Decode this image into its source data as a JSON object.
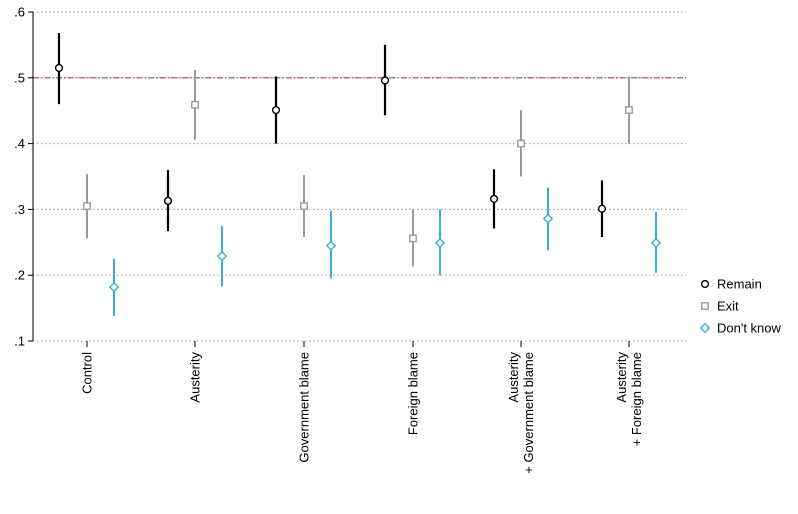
{
  "chart_data": {
    "type": "scatter",
    "title": "",
    "xlabel": "",
    "ylabel": "",
    "ylim": [
      0.1,
      0.6
    ],
    "yticks": [
      0.1,
      0.2,
      0.3,
      0.4,
      0.5,
      0.6
    ],
    "ytick_labels": [
      ".1",
      ".2",
      ".3",
      ".4",
      ".5",
      ".6"
    ],
    "grid": true,
    "reference_line": {
      "y": 0.5,
      "color": "#9b3f92"
    },
    "legend_position": "right",
    "categories": [
      {
        "id": "control",
        "lines": [
          "Control"
        ]
      },
      {
        "id": "austerity",
        "lines": [
          "Austerity"
        ]
      },
      {
        "id": "government-blame",
        "lines": [
          "Government blame"
        ]
      },
      {
        "id": "foreign-blame",
        "lines": [
          "Foreign blame"
        ]
      },
      {
        "id": "austerity-government-blame",
        "lines": [
          "Austerity",
          "+ Government blame"
        ]
      },
      {
        "id": "austerity-foreign-blame",
        "lines": [
          "Austerity",
          "+ Foreign blame"
        ]
      }
    ],
    "series": [
      {
        "name": "Remain",
        "id": "remain",
        "marker": "circle",
        "color": "#000000",
        "points": [
          {
            "y": 0.515,
            "lo": 0.46,
            "hi": 0.568
          },
          {
            "y": 0.313,
            "lo": 0.267,
            "hi": 0.36
          },
          {
            "y": 0.451,
            "lo": 0.4,
            "hi": 0.502
          },
          {
            "y": 0.496,
            "lo": 0.443,
            "hi": 0.55
          },
          {
            "y": 0.316,
            "lo": 0.271,
            "hi": 0.361
          },
          {
            "y": 0.301,
            "lo": 0.258,
            "hi": 0.344
          }
        ]
      },
      {
        "name": "Exit",
        "id": "exit",
        "marker": "square",
        "color": "#9a9a9a",
        "points": [
          {
            "y": 0.305,
            "lo": 0.256,
            "hi": 0.354
          },
          {
            "y": 0.459,
            "lo": 0.406,
            "hi": 0.512
          },
          {
            "y": 0.305,
            "lo": 0.258,
            "hi": 0.352
          },
          {
            "y": 0.256,
            "lo": 0.213,
            "hi": 0.3
          },
          {
            "y": 0.4,
            "lo": 0.35,
            "hi": 0.451
          },
          {
            "y": 0.451,
            "lo": 0.4,
            "hi": 0.502
          }
        ]
      },
      {
        "name": "Don't know",
        "id": "dont-know",
        "marker": "diamond",
        "color": "#3aaedf",
        "points": [
          {
            "y": 0.182,
            "lo": 0.138,
            "hi": 0.225
          },
          {
            "y": 0.229,
            "lo": 0.183,
            "hi": 0.275
          },
          {
            "y": 0.245,
            "lo": 0.195,
            "hi": 0.298
          },
          {
            "y": 0.249,
            "lo": 0.2,
            "hi": 0.3
          },
          {
            "y": 0.286,
            "lo": 0.238,
            "hi": 0.333
          },
          {
            "y": 0.249,
            "lo": 0.204,
            "hi": 0.296
          }
        ]
      }
    ]
  }
}
